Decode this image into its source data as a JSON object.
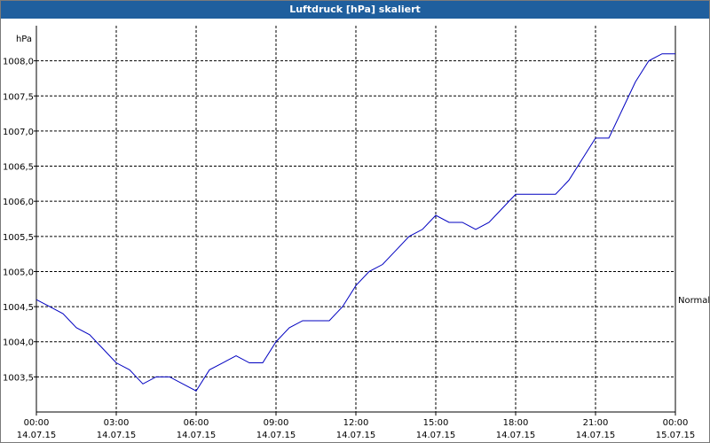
{
  "chart_data": {
    "type": "line",
    "title": "Luftdruck [hPa] skaliert",
    "y_label": "hPa",
    "annotation": "Normal",
    "x": [
      0,
      0.5,
      1,
      1.5,
      2,
      2.5,
      3,
      3.5,
      4,
      4.5,
      5,
      5.5,
      6,
      6.5,
      7,
      7.5,
      8,
      8.5,
      9,
      9.5,
      10,
      10.5,
      11,
      11.5,
      12,
      12.5,
      13,
      13.5,
      14,
      14.5,
      15,
      15.5,
      16,
      16.5,
      17,
      17.5,
      18,
      18.5,
      19,
      19.5,
      20,
      20.5,
      21,
      21.5,
      22,
      22.5,
      23,
      23.5,
      24
    ],
    "series": [
      {
        "color": "#0000c0",
        "values": [
          1004.6,
          1004.5,
          1004.4,
          1004.2,
          1004.1,
          1003.9,
          1003.7,
          1003.6,
          1003.4,
          1003.5,
          1003.5,
          1003.4,
          1003.3,
          1003.6,
          1003.7,
          1003.8,
          1003.7,
          1003.7,
          1004.0,
          1004.2,
          1004.3,
          1004.3,
          1004.3,
          1004.5,
          1004.8,
          1005.0,
          1005.1,
          1005.3,
          1005.5,
          1005.6,
          1005.8,
          1005.7,
          1005.7,
          1005.6,
          1005.7,
          1005.9,
          1006.1,
          1006.1,
          1006.1,
          1006.1,
          1006.3,
          1006.6,
          1006.9,
          1006.9,
          1007.3,
          1007.7,
          1008.0,
          1008.1,
          1008.1
        ]
      }
    ],
    "xlim": [
      0,
      24
    ],
    "xticks": [
      {
        "value": 0,
        "label": "00:00"
      },
      {
        "value": 3,
        "label": "03:00"
      },
      {
        "value": 6,
        "label": "06:00"
      },
      {
        "value": 9,
        "label": "09:00"
      },
      {
        "value": 12,
        "label": "12:00"
      },
      {
        "value": 15,
        "label": "15:00"
      },
      {
        "value": 18,
        "label": "18:00"
      },
      {
        "value": 21,
        "label": "21:00"
      },
      {
        "value": 24,
        "label": "00:00"
      }
    ],
    "xtick_dates": [
      "14.07.15",
      "14.07.15",
      "14.07.15",
      "14.07.15",
      "14.07.15",
      "14.07.15",
      "14.07.15",
      "14.07.15",
      "15.07.15"
    ],
    "ylim": [
      1003,
      1008.5
    ],
    "yticks": [
      {
        "value": 1003.5,
        "label": "1003,5"
      },
      {
        "value": 1004,
        "label": "1004,0"
      },
      {
        "value": 1004.5,
        "label": "1004,5"
      },
      {
        "value": 1005,
        "label": "1005,0"
      },
      {
        "value": 1005.5,
        "label": "1005,5"
      },
      {
        "value": 1006,
        "label": "1006,0"
      },
      {
        "value": 1006.5,
        "label": "1006,5"
      },
      {
        "value": 1007,
        "label": "1007,0"
      },
      {
        "value": 1007.5,
        "label": "1007,5"
      },
      {
        "value": 1008,
        "label": "1008,0"
      }
    ],
    "grid": true
  }
}
